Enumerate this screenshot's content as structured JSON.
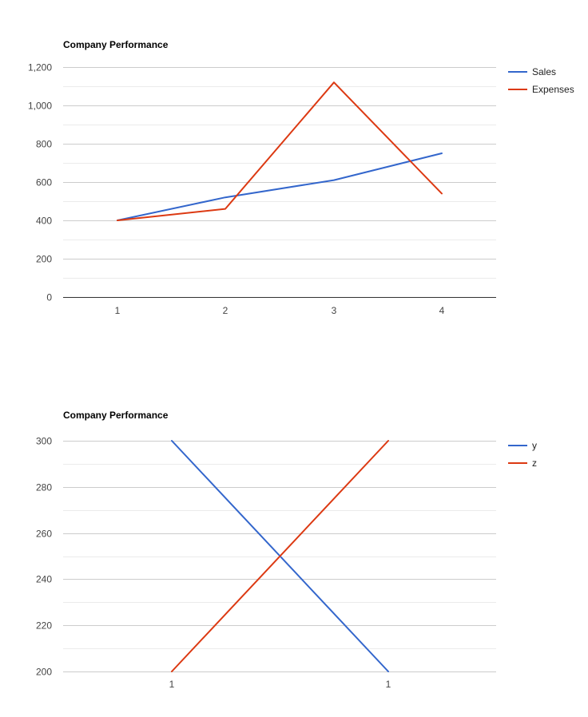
{
  "chart_data": [
    {
      "type": "line",
      "title": "Company Performance",
      "xlabel": "",
      "ylabel": "",
      "categories": [
        "1",
        "2",
        "3",
        "4"
      ],
      "series": [
        {
          "name": "Sales",
          "color": "#3366cc",
          "values": [
            400,
            520,
            610,
            750
          ]
        },
        {
          "name": "Expenses",
          "color": "#dc3912",
          "values": [
            400,
            460,
            1120,
            540
          ]
        }
      ],
      "ylim": [
        0,
        1200
      ],
      "yticks": [
        0,
        200,
        400,
        600,
        800,
        1000,
        1200
      ],
      "ytick_labels": [
        "0",
        "200",
        "400",
        "600",
        "800",
        "1,000",
        "1,200"
      ],
      "grid": true,
      "legend": "right"
    },
    {
      "type": "line",
      "title": "Company Performance",
      "xlabel": "",
      "ylabel": "",
      "categories": [
        "1",
        "1"
      ],
      "series": [
        {
          "name": "y",
          "color": "#3366cc",
          "values": [
            300,
            200
          ]
        },
        {
          "name": "z",
          "color": "#dc3912",
          "values": [
            200,
            300
          ]
        }
      ],
      "ylim": [
        200,
        300
      ],
      "yticks": [
        200,
        220,
        240,
        260,
        280,
        300
      ],
      "ytick_labels": [
        "200",
        "220",
        "240",
        "260",
        "280",
        "300"
      ],
      "grid": true,
      "legend": "right"
    }
  ]
}
